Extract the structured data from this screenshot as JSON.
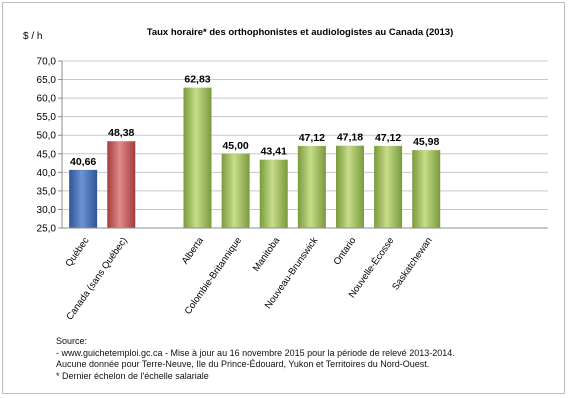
{
  "chart_data": {
    "type": "bar",
    "title": "Taux horaire* des orthophonistes et audiologistes au Canada (2013)",
    "ylabel": "$ / h",
    "xlabel": "",
    "ylim": [
      25,
      70
    ],
    "yticks": [
      "25,0",
      "30,0",
      "35,0",
      "40,0",
      "45,0",
      "50,0",
      "55,0",
      "60,0",
      "65,0",
      "70,0"
    ],
    "grid": true,
    "legend": "none",
    "categories": [
      "Québec",
      "Canada (sans Québec)",
      "Alberta",
      "Colombie-Britannique",
      "Manitoba",
      "Nouveau-Brunswick",
      "Ontario",
      "Nouvelle-Écosse",
      "Saskatchewan"
    ],
    "values": [
      40.66,
      48.38,
      62.83,
      45.0,
      43.41,
      47.12,
      47.18,
      47.12,
      45.98
    ],
    "value_labels": [
      "40,66",
      "48,38",
      "62,83",
      "45,00",
      "43,41",
      "47,12",
      "47,18",
      "47,12",
      "45,98"
    ],
    "bar_colors": [
      "#4a72b6",
      "#c45a5a",
      "#9bbb59",
      "#9bbb59",
      "#9bbb59",
      "#9bbb59",
      "#9bbb59",
      "#9bbb59",
      "#9bbb59"
    ]
  },
  "source": {
    "heading": "Source:",
    "line1": "- www.guichetemploi.gc.ca  - Mise à jour au 16 novembre 2015 pour la période de relevé 2013-2014.",
    "line2": "Aucune donnée pour Terre-Neuve, Ile du Prince-Édouard, Yukon et Territoires du Nord-Ouest.",
    "line3": "* Dernier échelon de l'échelle salariale"
  }
}
